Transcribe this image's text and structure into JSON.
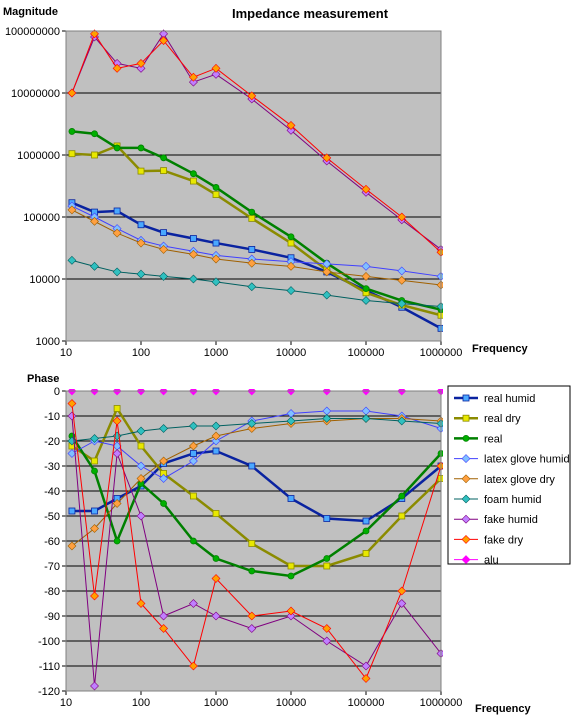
{
  "chart_data": [
    {
      "type": "line",
      "title": "Impedance measurement",
      "ylabel": "Magnitude",
      "xlabel": "Frequency",
      "xscale": "log",
      "yscale": "log",
      "xlim": [
        10,
        1000000
      ],
      "ylim": [
        1000,
        100000000
      ],
      "x_ticks": [
        "10",
        "100",
        "1000",
        "10000",
        "100000",
        "1000000"
      ],
      "y_ticks": [
        "1000",
        "10000",
        "100000",
        "1000000",
        "10000000",
        "100000000"
      ],
      "grid": "horizontal",
      "series": [
        {
          "name": "real humid",
          "color": "#0a23a0",
          "fill": "#4aa8ff",
          "marker": "square",
          "x": [
            12,
            24,
            48,
            100,
            200,
            500,
            1000,
            3000,
            10000,
            30000,
            100000,
            300000,
            1000000
          ],
          "y": [
            170000,
            120000,
            125000,
            75000,
            56000,
            45000,
            38000,
            30000,
            22000,
            13000,
            6500,
            3500,
            1600
          ]
        },
        {
          "name": "real dry",
          "color": "#8b8b00",
          "fill": "#e8e800",
          "marker": "square",
          "x": [
            12,
            24,
            48,
            100,
            200,
            500,
            1000,
            3000,
            10000,
            30000,
            100000,
            300000,
            1000000
          ],
          "y": [
            1050000,
            1000000,
            1400000,
            550000,
            560000,
            380000,
            230000,
            95000,
            38000,
            14000,
            6000,
            3800,
            2600
          ]
        },
        {
          "name": "real",
          "color": "#008000",
          "fill": "#00b000",
          "marker": "circle",
          "x": [
            12,
            24,
            48,
            100,
            200,
            500,
            1000,
            3000,
            10000,
            30000,
            100000,
            300000,
            1000000
          ],
          "y": [
            2400000,
            2200000,
            1300000,
            1300000,
            900000,
            500000,
            300000,
            120000,
            48000,
            18000,
            7000,
            4500,
            3200
          ]
        },
        {
          "name": "latex glove humid",
          "color": "#4040ff",
          "fill": "#80c0ff",
          "marker": "diamond",
          "x": [
            12,
            24,
            48,
            100,
            200,
            500,
            1000,
            3000,
            10000,
            30000,
            100000,
            300000,
            1000000
          ],
          "y": [
            150000,
            100000,
            65000,
            42000,
            34000,
            28000,
            24000,
            21000,
            19000,
            17500,
            16000,
            13500,
            11000
          ]
        },
        {
          "name": "latex glove dry",
          "color": "#a06000",
          "fill": "#ffa040",
          "marker": "diamond",
          "x": [
            12,
            24,
            48,
            100,
            200,
            500,
            1000,
            3000,
            10000,
            30000,
            100000,
            300000,
            1000000
          ],
          "y": [
            130000,
            85000,
            55000,
            38000,
            30000,
            25000,
            21000,
            18000,
            16000,
            13000,
            11000,
            9500,
            8000
          ]
        },
        {
          "name": "foam humid",
          "color": "#006060",
          "fill": "#30c0c0",
          "marker": "diamond",
          "x": [
            12,
            24,
            48,
            100,
            200,
            500,
            1000,
            3000,
            10000,
            30000,
            100000,
            300000,
            1000000
          ],
          "y": [
            20000,
            16000,
            13000,
            12000,
            11000,
            10000,
            9000,
            7500,
            6500,
            5500,
            4500,
            4000,
            3600
          ]
        },
        {
          "name": "fake humid",
          "color": "#800080",
          "fill": "#c080ff",
          "marker": "diamond",
          "x": [
            12,
            24,
            48,
            100,
            200,
            500,
            1000,
            3000,
            10000,
            30000,
            100000,
            300000,
            1000000
          ],
          "y": [
            10000000,
            80000000,
            30000000,
            25000000,
            90000000,
            15000000,
            20000000,
            8000000,
            2500000,
            800000,
            250000,
            90000,
            30000
          ]
        },
        {
          "name": "fake dry",
          "color": "#ff0000",
          "fill": "#ffa000",
          "marker": "diamond",
          "x": [
            12,
            24,
            48,
            100,
            200,
            500,
            1000,
            3000,
            10000,
            30000,
            100000,
            300000,
            1000000
          ],
          "y": [
            10000000,
            90000000,
            25000000,
            30000000,
            70000000,
            18000000,
            25000000,
            9000000,
            3000000,
            900000,
            280000,
            100000,
            27000
          ]
        }
      ]
    },
    {
      "type": "line",
      "title": "",
      "ylabel": "Phase",
      "xlabel": "Frequency",
      "xscale": "log",
      "xlim": [
        10,
        1000000
      ],
      "ylim": [
        -120,
        0
      ],
      "x_ticks": [
        "10",
        "100",
        "1000",
        "10000",
        "100000",
        "1000000"
      ],
      "y_ticks": [
        "0",
        "-10",
        "-20",
        "-30",
        "-40",
        "-50",
        "-60",
        "-70",
        "-80",
        "-90",
        "-100",
        "-110",
        "-120"
      ],
      "grid": "horizontal",
      "legend": "right",
      "series": [
        {
          "name": "real humid",
          "color": "#0a23a0",
          "fill": "#4aa8ff",
          "marker": "square",
          "x": [
            12,
            24,
            48,
            100,
            200,
            500,
            1000,
            3000,
            10000,
            30000,
            100000,
            300000,
            1000000
          ],
          "y": [
            -48,
            -48,
            -43,
            -38,
            -29,
            -25,
            -24,
            -30,
            -43,
            -51,
            -52,
            -43,
            -30
          ]
        },
        {
          "name": "real dry",
          "color": "#8b8b00",
          "fill": "#e8e800",
          "marker": "square",
          "x": [
            12,
            24,
            48,
            100,
            200,
            500,
            1000,
            3000,
            10000,
            30000,
            100000,
            300000,
            1000000
          ],
          "y": [
            -22,
            -28,
            -7,
            -22,
            -33,
            -42,
            -49,
            -61,
            -70,
            -70,
            -65,
            -50,
            -35
          ]
        },
        {
          "name": "real",
          "color": "#008000",
          "fill": "#00b000",
          "marker": "circle",
          "x": [
            12,
            24,
            48,
            100,
            200,
            500,
            1000,
            3000,
            10000,
            30000,
            100000,
            300000,
            1000000
          ],
          "y": [
            -18,
            -32,
            -60,
            -37,
            -45,
            -60,
            -67,
            -72,
            -74,
            -67,
            -56,
            -42,
            -25
          ]
        },
        {
          "name": "latex glove humid",
          "color": "#4040ff",
          "fill": "#80c0ff",
          "marker": "diamond",
          "x": [
            12,
            24,
            48,
            100,
            200,
            500,
            1000,
            3000,
            10000,
            30000,
            100000,
            300000,
            1000000
          ],
          "y": [
            -25,
            -20,
            -22,
            -30,
            -35,
            -28,
            -20,
            -12,
            -9,
            -8,
            -8,
            -10,
            -15
          ]
        },
        {
          "name": "latex glove dry",
          "color": "#a06000",
          "fill": "#ffa040",
          "marker": "diamond",
          "x": [
            12,
            24,
            48,
            100,
            200,
            500,
            1000,
            3000,
            10000,
            30000,
            100000,
            300000,
            1000000
          ],
          "y": [
            -62,
            -55,
            -45,
            -35,
            -28,
            -22,
            -18,
            -15,
            -13,
            -12,
            -11,
            -11,
            -12
          ]
        },
        {
          "name": "foam humid",
          "color": "#006060",
          "fill": "#30c0c0",
          "marker": "diamond",
          "x": [
            12,
            24,
            48,
            100,
            200,
            500,
            1000,
            3000,
            10000,
            30000,
            100000,
            300000,
            1000000
          ],
          "y": [
            -20,
            -19,
            -18,
            -16,
            -15,
            -14,
            -14,
            -13,
            -12,
            -11,
            -11,
            -12,
            -13
          ]
        },
        {
          "name": "fake humid",
          "color": "#800080",
          "fill": "#c080ff",
          "marker": "diamond",
          "x": [
            12,
            24,
            48,
            100,
            200,
            500,
            1000,
            3000,
            10000,
            30000,
            100000,
            300000,
            1000000
          ],
          "y": [
            -10,
            -118,
            -25,
            -50,
            -90,
            -85,
            -90,
            -95,
            -90,
            -100,
            -110,
            -85,
            -105
          ]
        },
        {
          "name": "fake dry",
          "color": "#ff0000",
          "fill": "#ffa000",
          "marker": "diamond",
          "x": [
            12,
            24,
            48,
            100,
            200,
            500,
            1000,
            3000,
            10000,
            30000,
            100000,
            300000,
            1000000
          ],
          "y": [
            -5,
            -82,
            -12,
            -85,
            -95,
            -110,
            -75,
            -90,
            -88,
            -95,
            -115,
            -80,
            -30
          ]
        },
        {
          "name": "alu",
          "color": "#ff00ff",
          "fill": "#ff00ff",
          "marker": "diamond",
          "x": [
            12,
            24,
            48,
            100,
            200,
            500,
            1000,
            3000,
            10000,
            30000,
            100000,
            300000,
            1000000
          ],
          "y": [
            0,
            0,
            0,
            0,
            0,
            0,
            0,
            0,
            0,
            0,
            0,
            0,
            0
          ]
        }
      ]
    }
  ]
}
